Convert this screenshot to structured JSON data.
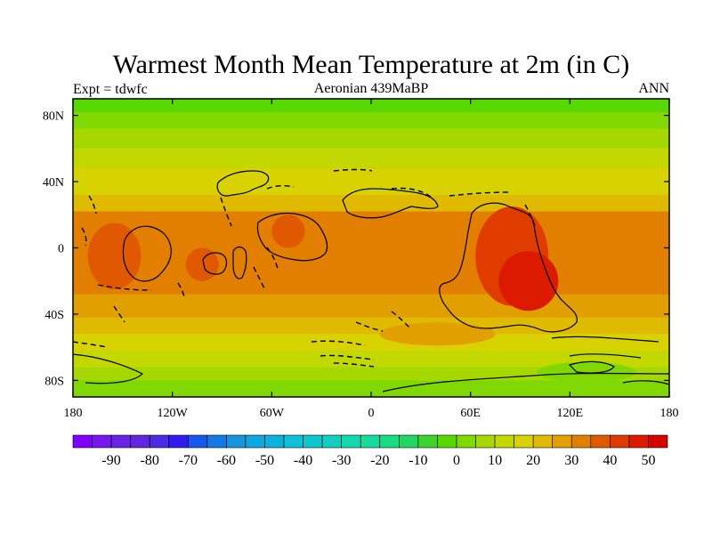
{
  "title": "Warmest Month Mean Temperature at 2m (in C)",
  "left_subtitle": "Expt = tdwfc",
  "center_subtitle": "Aeronian 439MaBP",
  "right_subtitle": "ANN",
  "map": {
    "lon_ticks": [
      {
        "value": -180,
        "label": "180"
      },
      {
        "value": -120,
        "label": "120W"
      },
      {
        "value": -60,
        "label": "60W"
      },
      {
        "value": 0,
        "label": "0"
      },
      {
        "value": 60,
        "label": "60E"
      },
      {
        "value": 120,
        "label": "120E"
      },
      {
        "value": 180,
        "label": "180"
      }
    ],
    "lat_ticks": [
      {
        "value": 80,
        "label": "80N"
      },
      {
        "value": 40,
        "label": "40N"
      },
      {
        "value": 0,
        "label": "0"
      },
      {
        "value": -40,
        "label": "40S"
      },
      {
        "value": -80,
        "label": "80S"
      }
    ],
    "lon_range": [
      -180,
      180
    ],
    "lat_range": [
      -90,
      90
    ],
    "zonal_bands": [
      {
        "lat_top": 90,
        "lat_bottom": 82,
        "value": -5
      },
      {
        "lat_top": 82,
        "lat_bottom": 72,
        "value": 0
      },
      {
        "lat_top": 72,
        "lat_bottom": 60,
        "value": 5
      },
      {
        "lat_top": 60,
        "lat_bottom": 48,
        "value": 10
      },
      {
        "lat_top": 48,
        "lat_bottom": 32,
        "value": 15
      },
      {
        "lat_top": 32,
        "lat_bottom": 22,
        "value": 20
      },
      {
        "lat_top": 22,
        "lat_bottom": -28,
        "value": 30
      },
      {
        "lat_top": -28,
        "lat_bottom": -42,
        "value": 25
      },
      {
        "lat_top": -42,
        "lat_bottom": -52,
        "value": 20
      },
      {
        "lat_top": -52,
        "lat_bottom": -62,
        "value": 15
      },
      {
        "lat_top": -62,
        "lat_bottom": -72,
        "value": 10
      },
      {
        "lat_top": -72,
        "lat_bottom": -80,
        "value": 5
      },
      {
        "lat_top": -80,
        "lat_bottom": -90,
        "value": 0
      }
    ],
    "warm_regions": [
      {
        "lon": 85,
        "lat": -5,
        "rx": 22,
        "ry": 30,
        "value": 40
      },
      {
        "lon": 95,
        "lat": -20,
        "rx": 18,
        "ry": 18,
        "value": 45
      },
      {
        "lon": -155,
        "lat": -5,
        "rx": 16,
        "ry": 20,
        "value": 35
      },
      {
        "lon": -102,
        "lat": -10,
        "rx": 10,
        "ry": 10,
        "value": 35
      },
      {
        "lon": -50,
        "lat": 10,
        "rx": 10,
        "ry": 10,
        "value": 35
      },
      {
        "lon": 40,
        "lat": -52,
        "rx": 35,
        "ry": 7,
        "value": 25
      },
      {
        "lon": 130,
        "lat": -75,
        "rx": 30,
        "ry": 6,
        "value": 0
      }
    ]
  },
  "colorbar": {
    "levels": [
      -95,
      -90,
      -85,
      -80,
      -75,
      -70,
      -65,
      -60,
      -55,
      -50,
      -45,
      -40,
      -35,
      -30,
      -25,
      -20,
      -15,
      -10,
      -5,
      0,
      5,
      10,
      15,
      20,
      25,
      30,
      35,
      40,
      45,
      50
    ],
    "colors": [
      "#7f00ff",
      "#7616ef",
      "#6c22e6",
      "#6226de",
      "#4c2ae6",
      "#3219f0",
      "#1a55ec",
      "#1478e6",
      "#1296de",
      "#0da6de",
      "#0ab2dc",
      "#10c0d6",
      "#10c8cc",
      "#12d0c0",
      "#14d8b0",
      "#1adaa0",
      "#1adc80",
      "#20d860",
      "#3ed42e",
      "#56d800",
      "#80d800",
      "#a6d800",
      "#c2d800",
      "#d8d200",
      "#e0ba00",
      "#e2a000",
      "#e27e00",
      "#e05800",
      "#e03c00",
      "#dc1a00",
      "#d80000"
    ],
    "labels": [
      "-90",
      "-80",
      "-70",
      "-60",
      "-50",
      "-40",
      "-30",
      "-20",
      "-10",
      "0",
      "10",
      "20",
      "30",
      "40",
      "50"
    ]
  }
}
